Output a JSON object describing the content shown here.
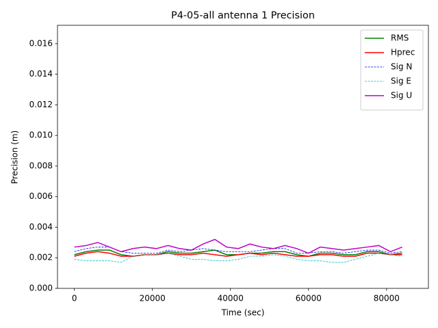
{
  "chart_data": {
    "type": "line",
    "title": "P4-05-all antenna 1 Precision",
    "x_label": "Time (sec)",
    "y_label": "Precision (m)",
    "x": [
      0,
      3000,
      6000,
      9000,
      12000,
      15000,
      18000,
      21000,
      24000,
      27000,
      30000,
      33000,
      36000,
      39000,
      42000,
      45000,
      48000,
      51000,
      54000,
      57000,
      60000,
      63000,
      66000,
      69000,
      72000,
      75000,
      78000,
      81000,
      84000
    ],
    "series": [
      {
        "name": "RMS",
        "color": "#008000",
        "linestyle": "solid",
        "values": [
          0.0022,
          0.0024,
          0.0025,
          0.0025,
          0.0022,
          0.0021,
          0.0022,
          0.0022,
          0.0024,
          0.0023,
          0.0023,
          0.0024,
          0.0025,
          0.0022,
          0.0022,
          0.0023,
          0.0023,
          0.0024,
          0.0024,
          0.0022,
          0.0021,
          0.0023,
          0.0023,
          0.0022,
          0.0022,
          0.0024,
          0.0024,
          0.0022,
          0.0023
        ]
      },
      {
        "name": "Hprec",
        "color": "#ff0000",
        "linestyle": "solid",
        "values": [
          0.0021,
          0.0023,
          0.0024,
          0.0023,
          0.0021,
          0.0021,
          0.0022,
          0.0022,
          0.0023,
          0.0022,
          0.0022,
          0.0023,
          0.0022,
          0.0021,
          0.0022,
          0.0023,
          0.0022,
          0.0023,
          0.0022,
          0.0021,
          0.0021,
          0.0022,
          0.0022,
          0.0021,
          0.0021,
          0.0023,
          0.0023,
          0.0022,
          0.0022
        ]
      },
      {
        "name": "Sig N",
        "color": "#0000ff",
        "linestyle": "dashed",
        "values": [
          0.0024,
          0.0026,
          0.0027,
          0.0027,
          0.0024,
          0.0023,
          0.0023,
          0.0023,
          0.0025,
          0.0024,
          0.0025,
          0.0026,
          0.0025,
          0.0024,
          0.0024,
          0.0024,
          0.0025,
          0.0026,
          0.0026,
          0.0023,
          0.0023,
          0.0024,
          0.0024,
          0.0023,
          0.0024,
          0.0025,
          0.0025,
          0.0023,
          0.0024
        ]
      },
      {
        "name": "Sig E",
        "color": "#00bfbf",
        "linestyle": "dashed",
        "values": [
          0.0019,
          0.0018,
          0.0018,
          0.0018,
          0.0017,
          0.0021,
          0.0022,
          0.0022,
          0.0023,
          0.0021,
          0.0019,
          0.0019,
          0.0018,
          0.0018,
          0.0019,
          0.0021,
          0.0021,
          0.0022,
          0.0021,
          0.0019,
          0.0018,
          0.0018,
          0.0017,
          0.0017,
          0.0019,
          0.0021,
          0.0023,
          0.0022,
          0.0021
        ]
      },
      {
        "name": "Sig U",
        "color": "#bf00bf",
        "linestyle": "solid",
        "values": [
          0.0027,
          0.0028,
          0.003,
          0.0027,
          0.0024,
          0.0026,
          0.0027,
          0.0026,
          0.0028,
          0.0026,
          0.0025,
          0.0029,
          0.0032,
          0.0027,
          0.0026,
          0.0029,
          0.0027,
          0.0026,
          0.0028,
          0.0026,
          0.0023,
          0.0027,
          0.0026,
          0.0025,
          0.0026,
          0.0027,
          0.0028,
          0.0024,
          0.0027
        ]
      }
    ],
    "xlim": [
      -4320,
      90720
    ],
    "ylim": [
      0,
      0.0172
    ],
    "xticks": [
      0,
      20000,
      40000,
      60000,
      80000
    ],
    "yticks": [
      {
        "value": 0,
        "label": "0.000"
      },
      0.002,
      0.004,
      0.006,
      0.008,
      {
        "value": 0.01,
        "label": "0.010"
      },
      0.012,
      0.014,
      0.016
    ],
    "legend": "upper right",
    "grid": false
  }
}
